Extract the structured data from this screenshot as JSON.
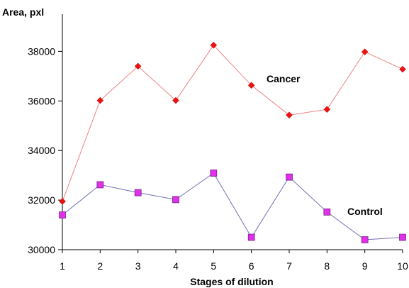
{
  "chart_data": {
    "type": "line",
    "title": "",
    "xlabel": "Stages of dilution",
    "ylabel": "Area, pxl",
    "x": [
      1,
      2,
      3,
      4,
      5,
      6,
      7,
      8,
      9,
      10
    ],
    "xlim": [
      1,
      10
    ],
    "ylim": [
      30000,
      39500
    ],
    "yticks": [
      30000,
      32000,
      34000,
      36000,
      38000
    ],
    "grid": false,
    "legend": "none",
    "series": [
      {
        "name": "Cancer",
        "values": [
          31950,
          36020,
          37400,
          36020,
          38250,
          36630,
          35430,
          35660,
          37980,
          37280
        ],
        "line_color": "#f08080",
        "marker": "diamond",
        "marker_color": "#ee1111"
      },
      {
        "name": "Control",
        "values": [
          31400,
          32620,
          32300,
          32020,
          33090,
          30500,
          32930,
          31520,
          30400,
          30500
        ],
        "line_color": "#7070b8",
        "marker": "square",
        "marker_color": "#e030e8"
      }
    ]
  }
}
